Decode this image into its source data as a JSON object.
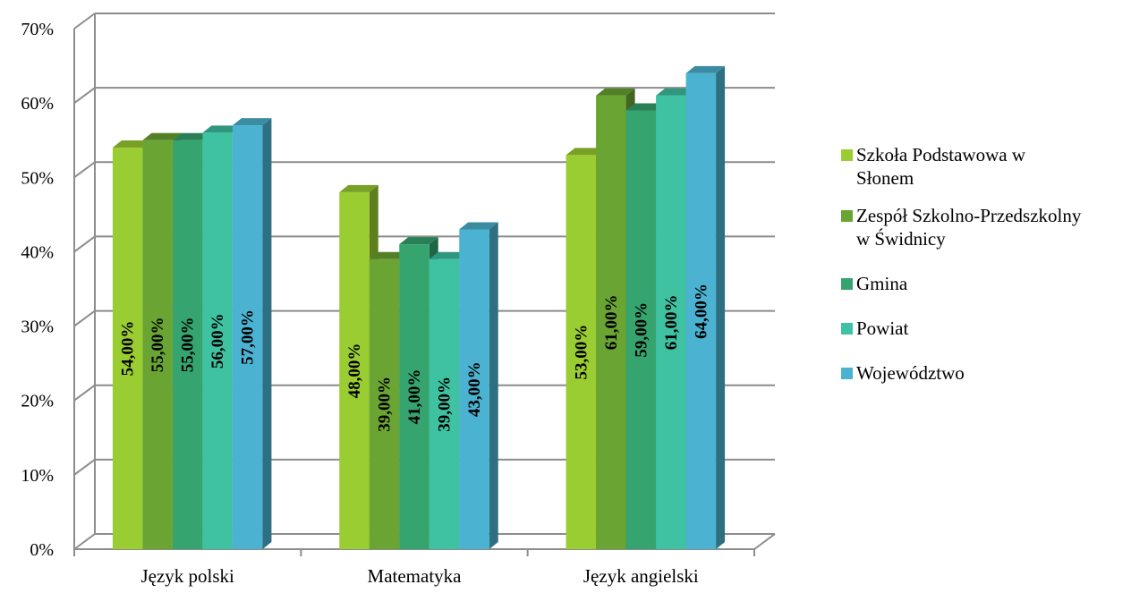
{
  "chart_data": {
    "type": "bar",
    "title": "",
    "xlabel": "",
    "ylabel": "",
    "categories": [
      "Język polski",
      "Matematyka",
      "Język angielski"
    ],
    "ylim": [
      0,
      70
    ],
    "yticks": [
      "0%",
      "10%",
      "20%",
      "30%",
      "40%",
      "50%",
      "60%",
      "70%"
    ],
    "grid": true,
    "legend_position": "right",
    "series": [
      {
        "name": "Szkoła Podstawowa w\nSłonem",
        "color": "#9ACD32",
        "values": [
          54,
          48,
          53
        ],
        "labels": [
          "54,00%",
          "48,00%",
          "53,00%"
        ]
      },
      {
        "name": "Zespół Szkolno-Przedszkolny\nw Świdnicy",
        "color": "#6AA432",
        "values": [
          55,
          39,
          61
        ],
        "labels": [
          "55,00%",
          "39,00%",
          "61,00%"
        ]
      },
      {
        "name": "Gmina",
        "color": "#36A46E",
        "values": [
          55,
          41,
          59
        ],
        "labels": [
          "55,00%",
          "41,00%",
          "59,00%"
        ]
      },
      {
        "name": "Powiat",
        "color": "#3EC2A2",
        "values": [
          56,
          39,
          61
        ],
        "labels": [
          "56,00%",
          "39,00%",
          "61,00%"
        ]
      },
      {
        "name": "Województwo",
        "color": "#4BB3D1",
        "values": [
          57,
          43,
          64
        ],
        "labels": [
          "57,00%",
          "43,00%",
          "64,00%"
        ]
      }
    ]
  }
}
